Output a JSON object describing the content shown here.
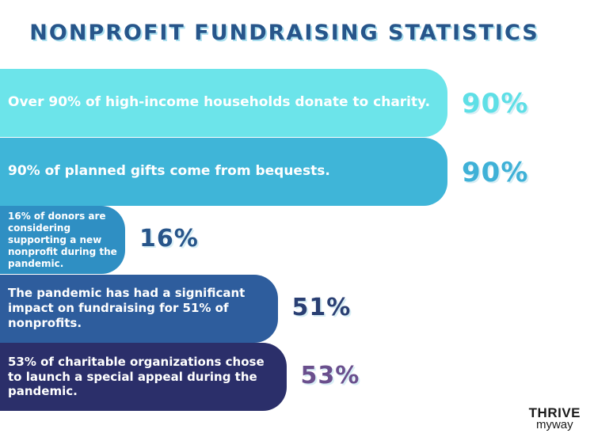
{
  "title": "NONPROFIT FUNDRAISING STATISTICS",
  "chart_data": {
    "type": "bar",
    "orientation": "horizontal",
    "categories": [
      "Over 90% of high-income households donate to charity.",
      "90% of planned gifts come from bequests.",
      "16% of donors are considering supporting a new nonprofit during the pandemic.",
      "The pandemic has had a significant impact on fundraising for 51% of nonprofits.",
      "53% of charitable organizations chose to launch a special appeal during the pandemic."
    ],
    "values": [
      90,
      90,
      16,
      51,
      53
    ],
    "value_labels": [
      "90%",
      "90%",
      "16%",
      "51%",
      "53%"
    ],
    "bar_colors": [
      "#6ce4ea",
      "#3fb5d8",
      "#2f8fc3",
      "#2e5d9d",
      "#2b2f6a"
    ],
    "label_colors": [
      "#5edfe6",
      "#3fb1d7",
      "#27558a",
      "#2a3f73",
      "#6a4f8d"
    ],
    "xlim": [
      0,
      100
    ],
    "grid": false,
    "legend": "none"
  },
  "logo": {
    "top": "THRIVE",
    "bottom": "myway"
  }
}
